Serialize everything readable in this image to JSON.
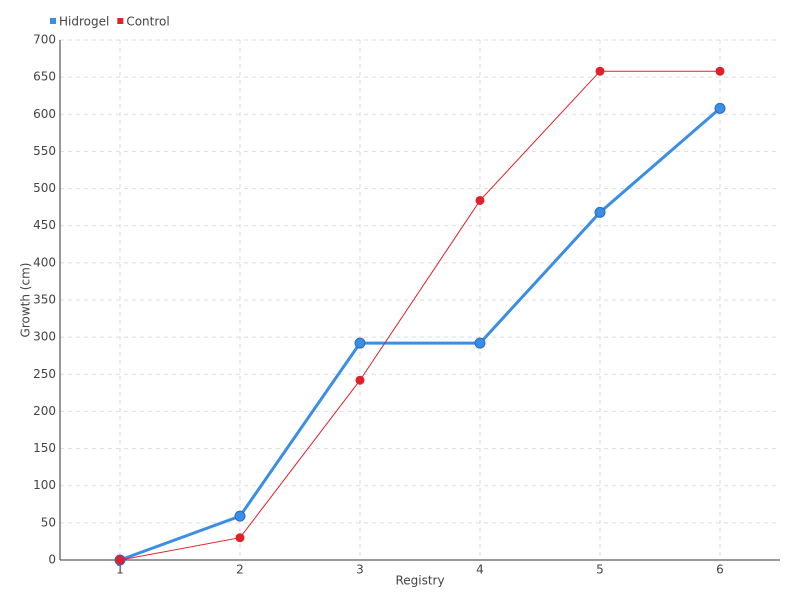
{
  "chart_data": {
    "type": "line",
    "x_label": "Registry",
    "y_label": "Growth (cm)",
    "categories": [
      "1",
      "2",
      "3",
      "4",
      "5",
      "6"
    ],
    "series": [
      {
        "name": "Hidrogel",
        "color": "#3a8ee6",
        "values": [
          0,
          59,
          292,
          292,
          468,
          608
        ]
      },
      {
        "name": "Control",
        "color": "#e0202a",
        "values": [
          0,
          30,
          242,
          484,
          658,
          658
        ]
      }
    ],
    "ylim": [
      0,
      700
    ],
    "yticks": [
      0,
      50,
      100,
      150,
      200,
      250,
      300,
      350,
      400,
      450,
      500,
      550,
      600,
      650,
      700
    ],
    "grid": true,
    "legend": "top-left"
  }
}
